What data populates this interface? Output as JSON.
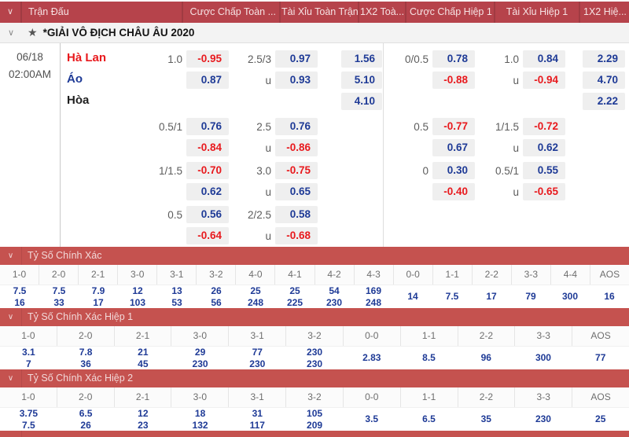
{
  "colors": {
    "header_red": "#b6434b",
    "section_red": "#c5524f",
    "odds_positive_blue": "#1e3a96",
    "odds_negative_red": "#e8191d",
    "odds_cell_bg": "#efefef"
  },
  "icons": {
    "chevron_down": "∨",
    "star": "★"
  },
  "header": {
    "columns": [
      "Trận Đấu",
      "Cược Chấp Toàn ...",
      "Tài Xỉu Toàn Trận",
      "1X2 Toà...",
      "Cược Chấp Hiệp 1",
      "Tài Xỉu Hiệp 1",
      "1X2 Hiệ..."
    ]
  },
  "league": {
    "name": "*GIẢI VÔ ĐỊCH CHÂU ÂU 2020"
  },
  "match": {
    "date": "06/18",
    "time": "02:00AM",
    "teams": {
      "home": "Hà Lan",
      "away": "Áo",
      "draw": "Hòa"
    },
    "odds_1x2_full": [
      "1.56",
      "5.10",
      "4.10"
    ],
    "odds_1x2_h1": [
      "2.29",
      "4.70",
      "2.22"
    ],
    "odds_blocks": [
      {
        "hcp_full": [
          {
            "line": "1.0",
            "odd": "-0.95"
          },
          {
            "line": "",
            "odd": "0.87"
          }
        ],
        "ou_full": [
          {
            "line": "2.5/3",
            "odd": "0.97"
          },
          {
            "line": "u",
            "odd": "0.93"
          }
        ],
        "hcp_h1": [
          {
            "line": "0/0.5",
            "odd": "0.78"
          },
          {
            "line": "",
            "odd": "-0.88"
          }
        ],
        "ou_h1": [
          {
            "line": "1.0",
            "odd": "0.84"
          },
          {
            "line": "u",
            "odd": "-0.94"
          }
        ]
      },
      {
        "hcp_full": [
          {
            "line": "0.5/1",
            "odd": "0.76"
          },
          {
            "line": "",
            "odd": "-0.84"
          }
        ],
        "ou_full": [
          {
            "line": "2.5",
            "odd": "0.76"
          },
          {
            "line": "u",
            "odd": "-0.86"
          }
        ],
        "hcp_h1": [
          {
            "line": "0.5",
            "odd": "-0.77"
          },
          {
            "line": "",
            "odd": "0.67"
          }
        ],
        "ou_h1": [
          {
            "line": "1/1.5",
            "odd": "-0.72"
          },
          {
            "line": "u",
            "odd": "0.62"
          }
        ]
      },
      {
        "hcp_full": [
          {
            "line": "1/1.5",
            "odd": "-0.70"
          },
          {
            "line": "",
            "odd": "0.62"
          }
        ],
        "ou_full": [
          {
            "line": "3.0",
            "odd": "-0.75"
          },
          {
            "line": "u",
            "odd": "0.65"
          }
        ],
        "hcp_h1": [
          {
            "line": "0",
            "odd": "0.30"
          },
          {
            "line": "",
            "odd": "-0.40"
          }
        ],
        "ou_h1": [
          {
            "line": "0.5/1",
            "odd": "0.55"
          },
          {
            "line": "u",
            "odd": "-0.65"
          }
        ]
      },
      {
        "hcp_full": [
          {
            "line": "0.5",
            "odd": "0.56"
          },
          {
            "line": "",
            "odd": "-0.64"
          }
        ],
        "ou_full": [
          {
            "line": "2/2.5",
            "odd": "0.58"
          },
          {
            "line": "u",
            "odd": "-0.68"
          }
        ],
        "hcp_h1": [],
        "ou_h1": []
      }
    ]
  },
  "score_sections": [
    {
      "title": "Tỷ Số Chính Xác",
      "columns": [
        {
          "score": "1-0",
          "values": [
            "7.5",
            "16"
          ]
        },
        {
          "score": "2-0",
          "values": [
            "7.5",
            "33"
          ]
        },
        {
          "score": "2-1",
          "values": [
            "7.9",
            "17"
          ]
        },
        {
          "score": "3-0",
          "values": [
            "12",
            "103"
          ]
        },
        {
          "score": "3-1",
          "values": [
            "13",
            "53"
          ]
        },
        {
          "score": "3-2",
          "values": [
            "26",
            "56"
          ]
        },
        {
          "score": "4-0",
          "values": [
            "25",
            "248"
          ]
        },
        {
          "score": "4-1",
          "values": [
            "25",
            "225"
          ]
        },
        {
          "score": "4-2",
          "values": [
            "54",
            "230"
          ]
        },
        {
          "score": "4-3",
          "values": [
            "169",
            "248"
          ]
        },
        {
          "score": "0-0",
          "values": [
            "14"
          ]
        },
        {
          "score": "1-1",
          "values": [
            "7.5"
          ]
        },
        {
          "score": "2-2",
          "values": [
            "17"
          ]
        },
        {
          "score": "3-3",
          "values": [
            "79"
          ]
        },
        {
          "score": "4-4",
          "values": [
            "300"
          ]
        },
        {
          "score": "AOS",
          "values": [
            "16"
          ]
        }
      ]
    },
    {
      "title": "Tỷ Số Chính Xác Hiệp 1",
      "columns": [
        {
          "score": "1-0",
          "values": [
            "3.1",
            "7"
          ]
        },
        {
          "score": "2-0",
          "values": [
            "7.8",
            "36"
          ]
        },
        {
          "score": "2-1",
          "values": [
            "21",
            "45"
          ]
        },
        {
          "score": "3-0",
          "values": [
            "29",
            "230"
          ]
        },
        {
          "score": "3-1",
          "values": [
            "77",
            "230"
          ]
        },
        {
          "score": "3-2",
          "values": [
            "230",
            "230"
          ]
        },
        {
          "score": "0-0",
          "values": [
            "2.83"
          ]
        },
        {
          "score": "1-1",
          "values": [
            "8.5"
          ]
        },
        {
          "score": "2-2",
          "values": [
            "96"
          ]
        },
        {
          "score": "3-3",
          "values": [
            "300"
          ]
        },
        {
          "score": "AOS",
          "values": [
            "77"
          ]
        }
      ]
    },
    {
      "title": "Tỷ Số Chính Xác Hiệp 2",
      "columns": [
        {
          "score": "1-0",
          "values": [
            "3.75",
            "7.5"
          ]
        },
        {
          "score": "2-0",
          "values": [
            "6.5",
            "26"
          ]
        },
        {
          "score": "2-1",
          "values": [
            "12",
            "23"
          ]
        },
        {
          "score": "3-0",
          "values": [
            "18",
            "132"
          ]
        },
        {
          "score": "3-1",
          "values": [
            "31",
            "117"
          ]
        },
        {
          "score": "3-2",
          "values": [
            "105",
            "209"
          ]
        },
        {
          "score": "0-0",
          "values": [
            "3.5"
          ]
        },
        {
          "score": "1-1",
          "values": [
            "6.5"
          ]
        },
        {
          "score": "2-2",
          "values": [
            "35"
          ]
        },
        {
          "score": "3-3",
          "values": [
            "230"
          ]
        },
        {
          "score": "AOS",
          "values": [
            "25"
          ]
        }
      ]
    }
  ]
}
